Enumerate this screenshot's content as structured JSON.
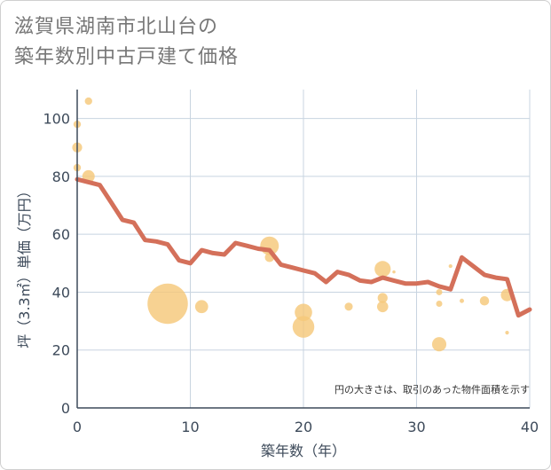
{
  "chart_data": {
    "type": "scatter",
    "title_lines": [
      "滋賀県湖南市北山台の",
      "築年数別中古戸建て価格"
    ],
    "xlabel": "築年数（年）",
    "ylabel": "坪（3.3㎡）単価（万円）",
    "xlim": [
      0,
      40
    ],
    "ylim": [
      0,
      110
    ],
    "xticks": [
      0,
      10,
      20,
      30,
      40
    ],
    "yticks": [
      0,
      20,
      40,
      60,
      80,
      100
    ],
    "grid": true,
    "note": "円の大きさは、取引のあった物件面積を示す",
    "colors": {
      "bubble": "#f5c87a",
      "line": "#d4705a",
      "grid": "#c8d4e0",
      "axis": "#3d4a5a"
    },
    "bubbles": [
      {
        "x": 0,
        "y": 98,
        "size": 1.2
      },
      {
        "x": 0,
        "y": 90,
        "size": 1.6
      },
      {
        "x": 0,
        "y": 83,
        "size": 1.2
      },
      {
        "x": 1,
        "y": 106,
        "size": 1.2
      },
      {
        "x": 1,
        "y": 80,
        "size": 2.0
      },
      {
        "x": 8,
        "y": 36,
        "size": 6.5
      },
      {
        "x": 11,
        "y": 35,
        "size": 2.1
      },
      {
        "x": 17,
        "y": 56,
        "size": 3.0
      },
      {
        "x": 17,
        "y": 52,
        "size": 1.5
      },
      {
        "x": 20,
        "y": 33,
        "size": 2.8
      },
      {
        "x": 20,
        "y": 28,
        "size": 3.5
      },
      {
        "x": 24,
        "y": 35,
        "size": 1.3
      },
      {
        "x": 27,
        "y": 48,
        "size": 2.6
      },
      {
        "x": 27,
        "y": 38,
        "size": 1.6
      },
      {
        "x": 27,
        "y": 35,
        "size": 1.8
      },
      {
        "x": 28,
        "y": 47,
        "size": 0.5
      },
      {
        "x": 32,
        "y": 40,
        "size": 1.0
      },
      {
        "x": 32,
        "y": 36,
        "size": 1.0
      },
      {
        "x": 32,
        "y": 22,
        "size": 2.3
      },
      {
        "x": 33,
        "y": 49,
        "size": 0.6
      },
      {
        "x": 34,
        "y": 37,
        "size": 0.7
      },
      {
        "x": 36,
        "y": 37,
        "size": 1.5
      },
      {
        "x": 38,
        "y": 39,
        "size": 2.0
      },
      {
        "x": 38,
        "y": 26,
        "size": 0.6
      }
    ],
    "line": {
      "x": [
        0,
        1,
        2,
        3,
        4,
        5,
        6,
        7,
        8,
        9,
        10,
        11,
        12,
        13,
        14,
        15,
        16,
        17,
        18,
        19,
        20,
        21,
        22,
        23,
        24,
        25,
        26,
        27,
        28,
        29,
        30,
        31,
        32,
        33,
        34,
        35,
        36,
        37,
        38,
        39,
        40
      ],
      "y": [
        79,
        78,
        77,
        71,
        65,
        64,
        58,
        57.5,
        56.5,
        51,
        50,
        54.5,
        53.5,
        53,
        57,
        56,
        55,
        54.5,
        49.5,
        48.5,
        47.5,
        46.5,
        43.5,
        47,
        46,
        44,
        43.5,
        45,
        44,
        43,
        43,
        43.5,
        42,
        41,
        52,
        49,
        46,
        45,
        44.5,
        32,
        34
      ]
    }
  }
}
